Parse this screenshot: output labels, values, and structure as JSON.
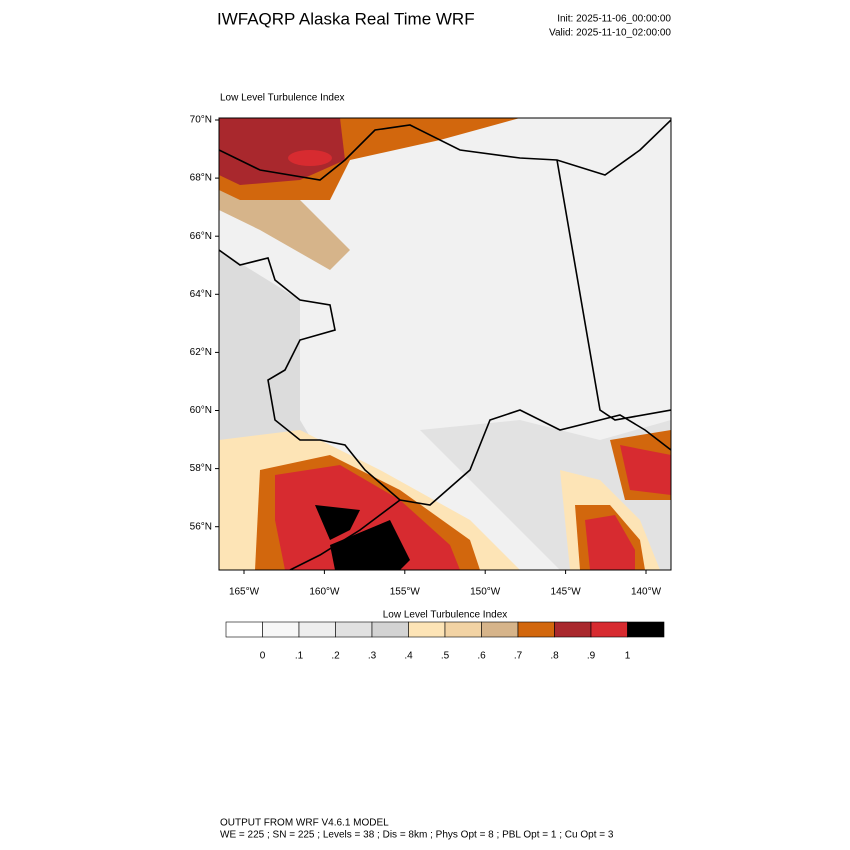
{
  "header": {
    "title": "IWFAQRP Alaska Real Time WRF",
    "init": "Init: 2025-11-06_00:00:00",
    "valid": "Valid: 2025-11-10_02:00:00"
  },
  "map": {
    "title": "Low Level Turbulence Index",
    "lat_labels": [
      "70°N",
      "68°N",
      "66°N",
      "64°N",
      "62°N",
      "60°N",
      "58°N",
      "56°N"
    ],
    "lon_labels": [
      "165°W",
      "160°W",
      "155°W",
      "150°W",
      "145°W",
      "140°W"
    ]
  },
  "colorbar": {
    "title": "Low Level Turbulence Index",
    "labels": [
      "0",
      ".1",
      ".2",
      ".3",
      ".4",
      ".5",
      ".6",
      ".7",
      ".8",
      ".9",
      "1"
    ],
    "colors": [
      "#ffffff",
      "#f7f7f7",
      "#eeeeee",
      "#e1e1e1",
      "#d3d3d3",
      "#fde4b6",
      "#f2d3a4",
      "#d6b48a",
      "#d2670d",
      "#a9282d",
      "#d72b30",
      "#000000"
    ]
  },
  "footer": {
    "line1": "OUTPUT FROM WRF V4.6.1 MODEL",
    "line2": "WE = 225 ; SN = 225 ; Levels = 38 ; Dis = 8km ; Phys Opt = 8 ; PBL Opt = 1 ; Cu Opt = 3"
  }
}
